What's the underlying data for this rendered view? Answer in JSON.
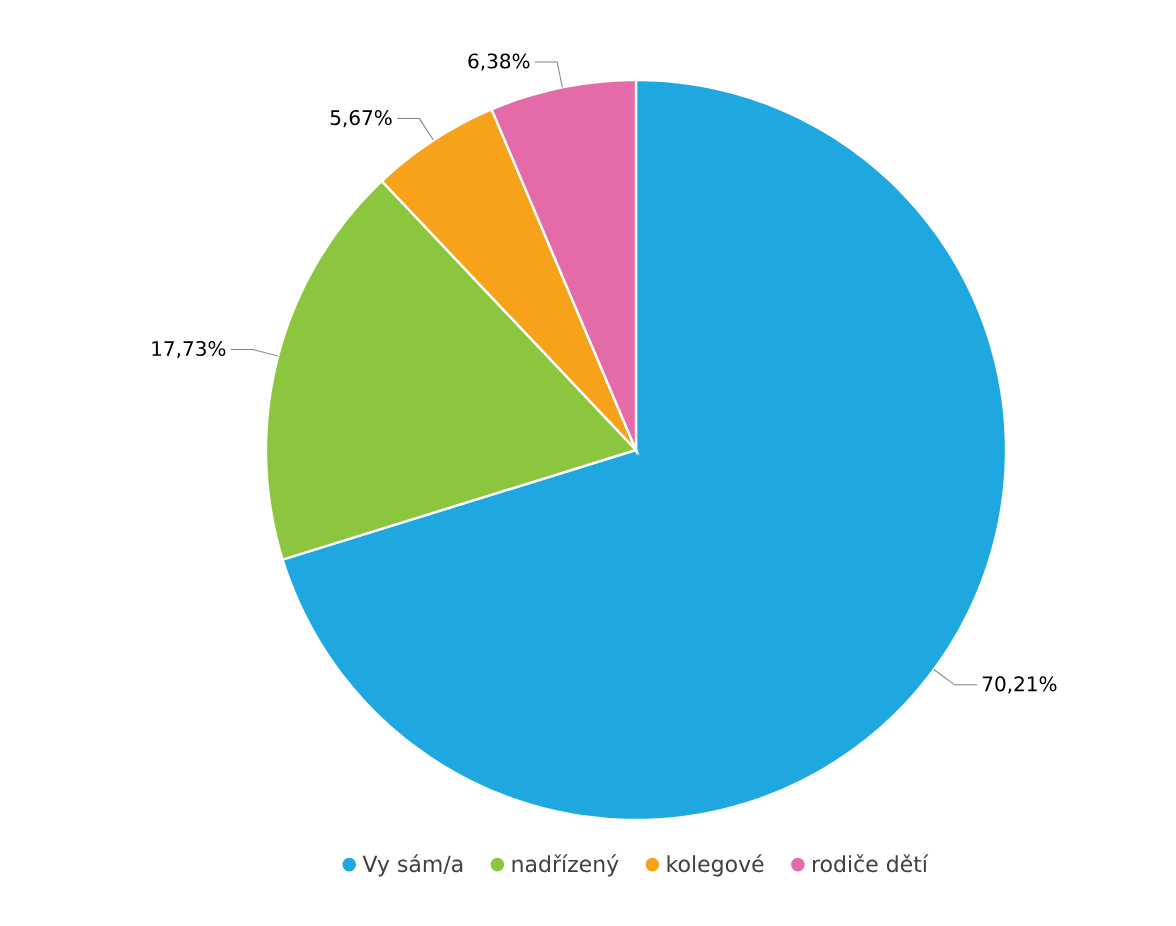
{
  "chart_data": {
    "type": "pie",
    "categories": [
      "Vy sám/a",
      "nadřízený",
      "kolegové",
      "rodiče dětí"
    ],
    "values": [
      70.21,
      17.73,
      5.67,
      6.38
    ],
    "colors": [
      "#1fa8e0",
      "#8cc63f",
      "#f7a21b",
      "#e46ba8"
    ],
    "value_labels": [
      "70,21%",
      "17,73%",
      "5,67%",
      "6,38%"
    ],
    "legend": "bottom"
  }
}
